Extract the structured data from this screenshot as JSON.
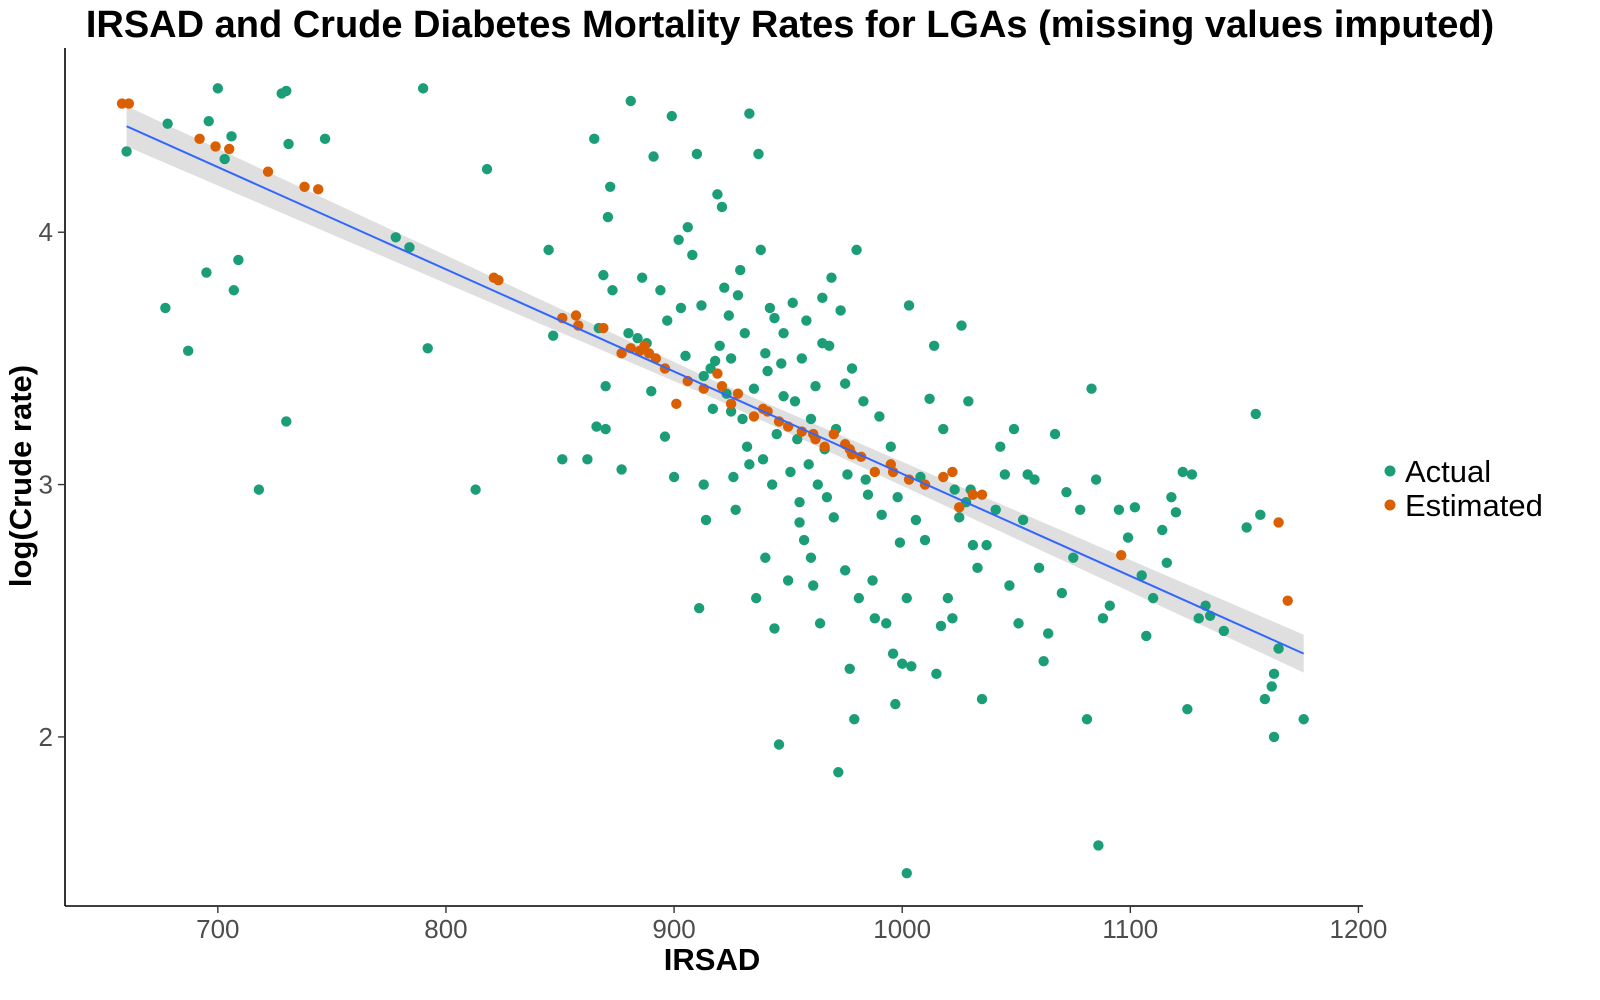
{
  "chart_data": {
    "type": "scatter",
    "title": "IRSAD and Crude Diabetes Mortality Rates for LGAs (missing values imputed)",
    "xlabel": "IRSAD",
    "ylabel": "log(Crude rate)",
    "xlim": [
      633,
      1202
    ],
    "ylim": [
      1.33,
      4.73
    ],
    "x_ticks": [
      700,
      800,
      900,
      1000,
      1100,
      1200
    ],
    "y_ticks": [
      2,
      3,
      4
    ],
    "grid": false,
    "legend_position": "right",
    "colors": {
      "Actual": "#1b9e77",
      "Estimated": "#d95f02",
      "fit_line": "#3366ff",
      "confidence_band": "#d9d9d9"
    },
    "trend": {
      "method": "linear",
      "x": [
        660,
        1176
      ],
      "y": [
        4.42,
        2.33
      ],
      "ci_halfwidth": [
        0.08,
        0.035,
        0.075
      ]
    },
    "series": [
      {
        "name": "Actual",
        "points": [
          [
            660,
            4.32
          ],
          [
            678,
            4.43
          ],
          [
            696,
            4.44
          ],
          [
            700,
            4.57
          ],
          [
            703,
            4.29
          ],
          [
            706,
            4.38
          ],
          [
            728,
            4.55
          ],
          [
            730,
            4.56
          ],
          [
            731,
            4.35
          ],
          [
            747,
            4.37
          ],
          [
            790,
            4.57
          ],
          [
            695,
            3.84
          ],
          [
            709,
            3.89
          ],
          [
            707,
            3.77
          ],
          [
            677,
            3.7
          ],
          [
            687,
            3.53
          ],
          [
            730,
            3.25
          ],
          [
            718,
            2.98
          ],
          [
            778,
            3.98
          ],
          [
            784,
            3.94
          ],
          [
            792,
            3.54
          ],
          [
            813,
            2.98
          ],
          [
            818,
            4.25
          ],
          [
            845,
            3.93
          ],
          [
            847,
            3.59
          ],
          [
            851,
            3.1
          ],
          [
            865,
            4.37
          ],
          [
            869,
            3.83
          ],
          [
            870,
            3.39
          ],
          [
            872,
            4.18
          ],
          [
            871,
            4.06
          ],
          [
            873,
            3.77
          ],
          [
            867,
            3.62
          ],
          [
            866,
            3.23
          ],
          [
            862,
            3.1
          ],
          [
            870,
            3.22
          ],
          [
            877,
            3.06
          ],
          [
            881,
            4.52
          ],
          [
            880,
            3.6
          ],
          [
            884,
            3.58
          ],
          [
            886,
            3.82
          ],
          [
            888,
            3.56
          ],
          [
            890,
            3.37
          ],
          [
            891,
            4.3
          ],
          [
            894,
            3.77
          ],
          [
            896,
            3.19
          ],
          [
            899,
            4.46
          ],
          [
            897,
            3.65
          ],
          [
            902,
            3.97
          ],
          [
            903,
            3.7
          ],
          [
            900,
            3.03
          ],
          [
            905,
            3.51
          ],
          [
            906,
            4.02
          ],
          [
            908,
            3.91
          ],
          [
            910,
            4.31
          ],
          [
            911,
            2.51
          ],
          [
            912,
            3.71
          ],
          [
            913,
            3.0
          ],
          [
            914,
            2.86
          ],
          [
            916,
            3.46
          ],
          [
            917,
            3.3
          ],
          [
            919,
            4.15
          ],
          [
            920,
            3.55
          ],
          [
            921,
            4.1
          ],
          [
            922,
            3.78
          ],
          [
            923,
            3.36
          ],
          [
            924,
            3.67
          ],
          [
            925,
            3.5
          ],
          [
            926,
            3.03
          ],
          [
            927,
            2.9
          ],
          [
            928,
            3.75
          ],
          [
            929,
            3.85
          ],
          [
            930,
            3.26
          ],
          [
            931,
            3.6
          ],
          [
            932,
            3.15
          ],
          [
            933,
            4.47
          ],
          [
            935,
            3.38
          ],
          [
            936,
            2.55
          ],
          [
            937,
            4.31
          ],
          [
            938,
            3.93
          ],
          [
            939,
            3.1
          ],
          [
            940,
            2.71
          ],
          [
            941,
            3.45
          ],
          [
            942,
            3.7
          ],
          [
            943,
            3.0
          ],
          [
            944,
            2.43
          ],
          [
            945,
            3.2
          ],
          [
            946,
            1.97
          ],
          [
            947,
            3.48
          ],
          [
            948,
            3.6
          ],
          [
            950,
            2.62
          ],
          [
            951,
            3.05
          ],
          [
            952,
            3.72
          ],
          [
            953,
            3.33
          ],
          [
            954,
            3.18
          ],
          [
            955,
            2.93
          ],
          [
            956,
            3.5
          ],
          [
            957,
            2.78
          ],
          [
            958,
            3.65
          ],
          [
            959,
            3.08
          ],
          [
            960,
            3.26
          ],
          [
            961,
            2.6
          ],
          [
            962,
            3.39
          ],
          [
            963,
            3.0
          ],
          [
            964,
            2.45
          ],
          [
            965,
            3.74
          ],
          [
            966,
            3.14
          ],
          [
            967,
            2.95
          ],
          [
            968,
            3.55
          ],
          [
            969,
            3.82
          ],
          [
            970,
            2.87
          ],
          [
            971,
            3.22
          ],
          [
            972,
            1.86
          ],
          [
            973,
            3.69
          ],
          [
            975,
            2.66
          ],
          [
            976,
            3.04
          ],
          [
            977,
            2.27
          ],
          [
            978,
            3.46
          ],
          [
            979,
            2.07
          ],
          [
            980,
            3.93
          ],
          [
            981,
            2.55
          ],
          [
            983,
            3.33
          ],
          [
            985,
            2.96
          ],
          [
            987,
            2.62
          ],
          [
            988,
            2.47
          ],
          [
            990,
            3.27
          ],
          [
            991,
            2.88
          ],
          [
            993,
            2.45
          ],
          [
            995,
            3.15
          ],
          [
            996,
            2.33
          ],
          [
            997,
            2.13
          ],
          [
            999,
            2.77
          ],
          [
            1000,
            2.29
          ],
          [
            1002,
            1.46
          ],
          [
            1002,
            2.55
          ],
          [
            1003,
            3.71
          ],
          [
            1004,
            2.28
          ],
          [
            1006,
            2.86
          ],
          [
            1008,
            3.03
          ],
          [
            1012,
            3.34
          ],
          [
            1014,
            3.55
          ],
          [
            1015,
            2.25
          ],
          [
            1017,
            2.44
          ],
          [
            1018,
            3.22
          ],
          [
            1020,
            2.55
          ],
          [
            1022,
            2.47
          ],
          [
            1023,
            2.98
          ],
          [
            1025,
            2.87
          ],
          [
            1026,
            3.63
          ],
          [
            1028,
            2.93
          ],
          [
            1029,
            3.33
          ],
          [
            1031,
            2.76
          ],
          [
            1033,
            2.67
          ],
          [
            1035,
            2.15
          ],
          [
            1037,
            2.76
          ],
          [
            1041,
            2.9
          ],
          [
            1043,
            3.15
          ],
          [
            1045,
            3.04
          ],
          [
            1047,
            2.6
          ],
          [
            1049,
            3.22
          ],
          [
            1051,
            2.45
          ],
          [
            1053,
            2.86
          ],
          [
            1055,
            3.04
          ],
          [
            1058,
            3.02
          ],
          [
            1060,
            2.67
          ],
          [
            1062,
            2.3
          ],
          [
            1064,
            2.41
          ],
          [
            1067,
            3.2
          ],
          [
            1070,
            2.57
          ],
          [
            1072,
            2.97
          ],
          [
            1075,
            2.71
          ],
          [
            1078,
            2.9
          ],
          [
            1081,
            2.07
          ],
          [
            1083,
            3.38
          ],
          [
            1085,
            3.02
          ],
          [
            1086,
            1.57
          ],
          [
            1088,
            2.47
          ],
          [
            1091,
            2.52
          ],
          [
            1095,
            2.9
          ],
          [
            1099,
            2.79
          ],
          [
            1102,
            2.91
          ],
          [
            1105,
            2.64
          ],
          [
            1107,
            2.4
          ],
          [
            1110,
            2.55
          ],
          [
            1114,
            2.82
          ],
          [
            1116,
            2.69
          ],
          [
            1118,
            2.95
          ],
          [
            1120,
            2.89
          ],
          [
            1123,
            3.05
          ],
          [
            1125,
            2.11
          ],
          [
            1127,
            3.04
          ],
          [
            1130,
            2.47
          ],
          [
            1133,
            2.52
          ],
          [
            1135,
            2.48
          ],
          [
            1141,
            2.42
          ],
          [
            1151,
            2.83
          ],
          [
            1155,
            3.28
          ],
          [
            1157,
            2.88
          ],
          [
            1159,
            2.15
          ],
          [
            1162,
            2.2
          ],
          [
            1163,
            2.25
          ],
          [
            1163,
            2.0
          ],
          [
            1165,
            2.35
          ],
          [
            1176,
            2.07
          ],
          [
            940,
            3.52
          ],
          [
            948,
            3.35
          ],
          [
            918,
            3.49
          ],
          [
            933,
            3.08
          ],
          [
            960,
            2.71
          ],
          [
            975,
            3.4
          ],
          [
            984,
            3.02
          ],
          [
            1030,
            2.98
          ],
          [
            998,
            2.95
          ],
          [
            955,
            2.85
          ],
          [
            925,
            3.29
          ],
          [
            965,
            3.56
          ],
          [
            913,
            3.43
          ],
          [
            944,
            3.66
          ],
          [
            1010,
            2.78
          ]
        ]
      },
      {
        "name": "Estimated",
        "points": [
          [
            658,
            4.51
          ],
          [
            661,
            4.51
          ],
          [
            692,
            4.37
          ],
          [
            699,
            4.34
          ],
          [
            705,
            4.33
          ],
          [
            722,
            4.24
          ],
          [
            738,
            4.18
          ],
          [
            744,
            4.17
          ],
          [
            821,
            3.82
          ],
          [
            823,
            3.81
          ],
          [
            851,
            3.66
          ],
          [
            857,
            3.67
          ],
          [
            858,
            3.63
          ],
          [
            869,
            3.62
          ],
          [
            877,
            3.52
          ],
          [
            881,
            3.54
          ],
          [
            885,
            3.53
          ],
          [
            887,
            3.55
          ],
          [
            889,
            3.52
          ],
          [
            896,
            3.46
          ],
          [
            901,
            3.32
          ],
          [
            906,
            3.41
          ],
          [
            913,
            3.38
          ],
          [
            919,
            3.44
          ],
          [
            921,
            3.39
          ],
          [
            925,
            3.32
          ],
          [
            928,
            3.36
          ],
          [
            935,
            3.27
          ],
          [
            939,
            3.3
          ],
          [
            941,
            3.29
          ],
          [
            946,
            3.25
          ],
          [
            950,
            3.23
          ],
          [
            956,
            3.21
          ],
          [
            962,
            3.18
          ],
          [
            966,
            3.15
          ],
          [
            970,
            3.2
          ],
          [
            975,
            3.16
          ],
          [
            978,
            3.12
          ],
          [
            982,
            3.11
          ],
          [
            988,
            3.05
          ],
          [
            996,
            3.05
          ],
          [
            1003,
            3.02
          ],
          [
            1010,
            3.0
          ],
          [
            1018,
            3.03
          ],
          [
            1025,
            2.91
          ],
          [
            1031,
            2.96
          ],
          [
            1035,
            2.96
          ],
          [
            1096,
            2.72
          ],
          [
            1165,
            2.85
          ],
          [
            1169,
            2.54
          ],
          [
            977,
            3.14
          ],
          [
            995,
            3.08
          ],
          [
            1022,
            3.05
          ],
          [
            892,
            3.5
          ],
          [
            961,
            3.2
          ]
        ]
      }
    ]
  }
}
